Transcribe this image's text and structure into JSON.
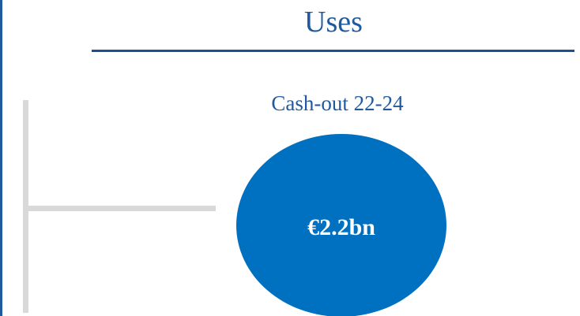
{
  "header": {
    "title": "Uses"
  },
  "section": {
    "subtitle": "Cash-out 22-24",
    "amount": "€2.2bn"
  }
}
